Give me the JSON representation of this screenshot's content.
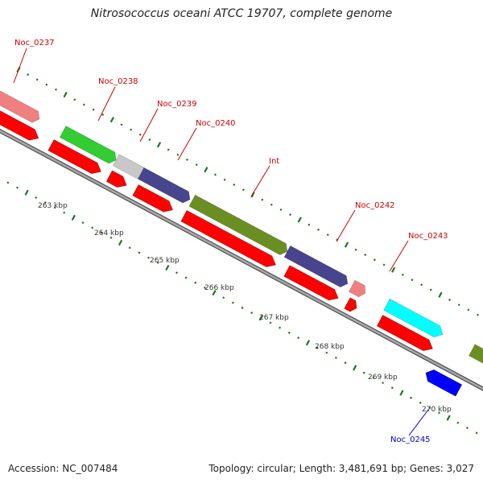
{
  "title": "Nitrosococcus oceani ATCC 19707, complete genome",
  "footer": {
    "accession": "Accession: NC_007484",
    "topology": "Topology: circular; Length: 3,481,691 bp; Genes: 3,027"
  },
  "colors": {
    "cds": "#ff0000",
    "backbone": "#888888",
    "tick": "#1a7a1a",
    "label_forward": "#cc0000",
    "label_reverse": "#0000cc"
  },
  "scale": {
    "unit": "kbp",
    "labels": [
      "263 kbp",
      "264 kbp",
      "265 kbp",
      "266 kbp",
      "267 kbp",
      "268 kbp",
      "269 kbp",
      "270 kbp"
    ]
  },
  "genes": [
    {
      "name": "Noc_0237",
      "strand": "forward",
      "color": "#f08080"
    },
    {
      "name": "Noc_0238",
      "strand": "forward",
      "color": "#33cc33"
    },
    {
      "name": "",
      "strand": "forward",
      "color": "#c8c8c8"
    },
    {
      "name": "Noc_0239",
      "strand": "forward",
      "color": "#48448e"
    },
    {
      "name": "Noc_0240",
      "strand": "forward",
      "color": ""
    },
    {
      "name": "Int",
      "strand": "forward",
      "color": "#6b8e23"
    },
    {
      "name": "Noc_0242",
      "strand": "forward",
      "color": "#48448e"
    },
    {
      "name": "Noc_0243",
      "strand": "forward",
      "color": "#f08080"
    },
    {
      "name": "",
      "strand": "forward",
      "color": "#00ffff"
    },
    {
      "name": "Noc_0245",
      "strand": "reverse",
      "color": "#0000ff"
    },
    {
      "name": "",
      "strand": "forward",
      "color": "#6b8e23"
    }
  ]
}
